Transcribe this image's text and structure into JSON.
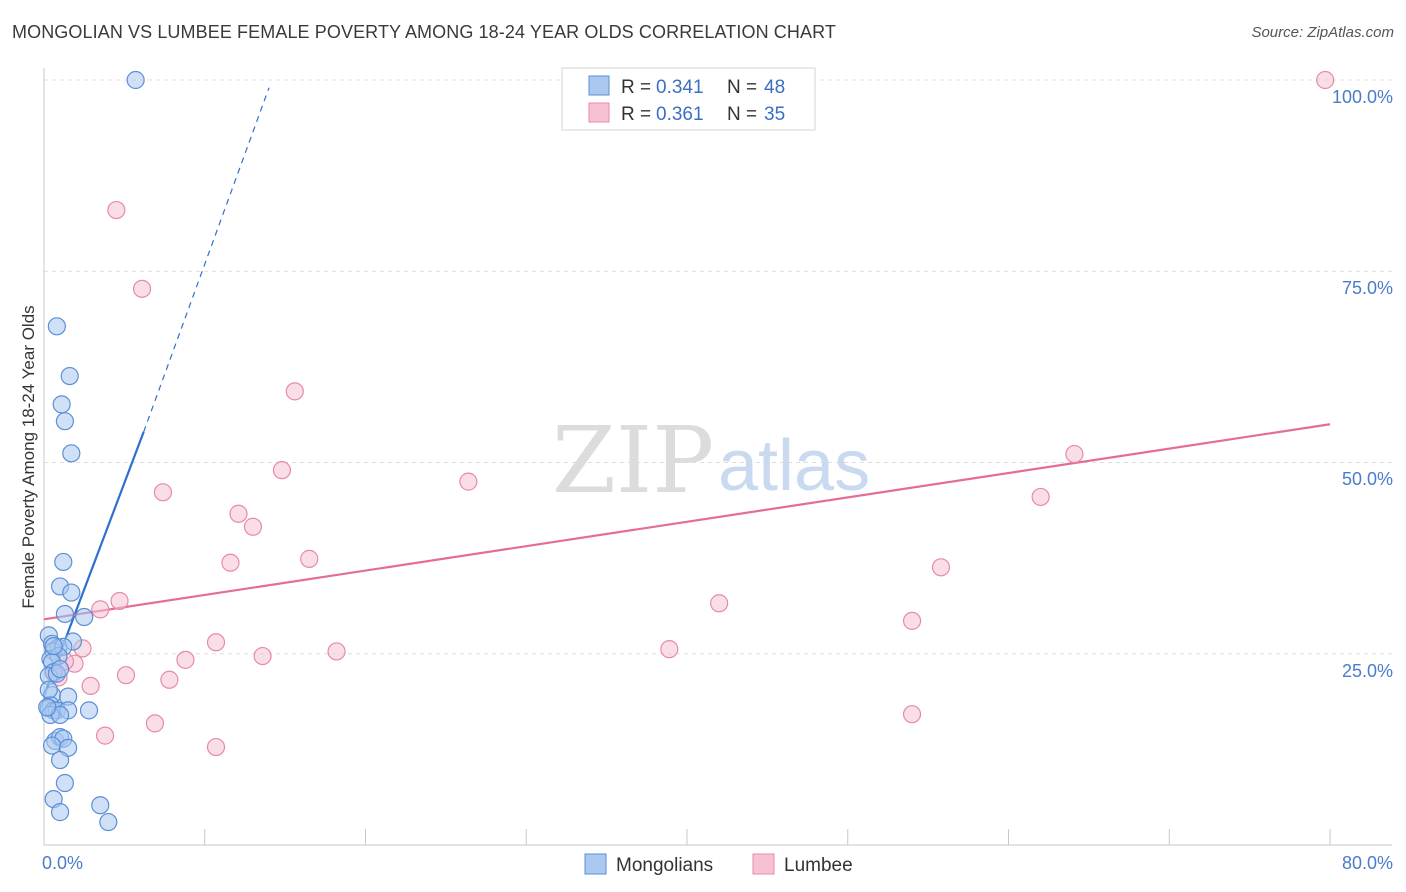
{
  "header": {
    "title": "MONGOLIAN VS LUMBEE FEMALE POVERTY AMONG 18-24 YEAR OLDS CORRELATION CHART",
    "source": "Source: ZipAtlas.com"
  },
  "watermark": {
    "zip": "ZIP",
    "atlas": "atlas"
  },
  "legend": {
    "r_label": "R =",
    "n_label": "N =",
    "rows": [
      {
        "r": "0.341",
        "n": "48"
      },
      {
        "r": "0.361",
        "n": "35"
      }
    ]
  },
  "colors": {
    "mongolian_fill": "#aac8f0",
    "mongolian_stroke": "#5b8fd6",
    "mongolian_line": "#2f6fd0",
    "lumbee_fill": "#f6c2d3",
    "lumbee_stroke": "#e889aa",
    "lumbee_line": "#e36d96",
    "grid": "#dddddd",
    "tick_text": "#4a7cc9"
  },
  "chart_data": {
    "type": "scatter",
    "title": "MONGOLIAN VS LUMBEE FEMALE POVERTY AMONG 18-24 YEAR OLDS CORRELATION CHART",
    "xlabel": "",
    "ylabel": "Female Poverty Among 18-24 Year Olds",
    "xlim": [
      0,
      80
    ],
    "ylim": [
      0,
      100
    ],
    "x_tick_labels": [
      "0.0%",
      "80.0%"
    ],
    "y_tick_labels": [
      "25.0%",
      "50.0%",
      "75.0%",
      "100.0%"
    ],
    "y_ticks": [
      25,
      50,
      75,
      100
    ],
    "series": [
      {
        "name": "Mongolians",
        "r": 0.341,
        "n": 48,
        "points": [
          [
            5.7,
            100.0
          ],
          [
            0.8,
            67.8
          ],
          [
            1.6,
            61.3
          ],
          [
            1.1,
            57.6
          ],
          [
            1.3,
            55.4
          ],
          [
            1.7,
            51.2
          ],
          [
            1.2,
            37.0
          ],
          [
            1.0,
            33.8
          ],
          [
            1.7,
            33.0
          ],
          [
            1.3,
            30.2
          ],
          [
            2.5,
            29.8
          ],
          [
            0.3,
            27.4
          ],
          [
            1.8,
            26.6
          ],
          [
            0.5,
            26.3
          ],
          [
            0.9,
            25.8
          ],
          [
            0.6,
            25.3
          ],
          [
            1.2,
            25.9
          ],
          [
            0.4,
            24.3
          ],
          [
            0.9,
            24.7
          ],
          [
            0.5,
            23.9
          ],
          [
            0.6,
            22.6
          ],
          [
            0.3,
            22.1
          ],
          [
            0.8,
            22.4
          ],
          [
            0.5,
            19.6
          ],
          [
            1.5,
            19.4
          ],
          [
            0.4,
            18.3
          ],
          [
            0.3,
            17.9
          ],
          [
            0.6,
            17.6
          ],
          [
            0.8,
            17.6
          ],
          [
            1.5,
            17.6
          ],
          [
            2.8,
            17.6
          ],
          [
            0.4,
            17.0
          ],
          [
            1.0,
            17.0
          ],
          [
            0.7,
            13.6
          ],
          [
            1.0,
            14.1
          ],
          [
            1.2,
            13.9
          ],
          [
            0.5,
            13.0
          ],
          [
            1.5,
            12.7
          ],
          [
            1.0,
            11.1
          ],
          [
            1.3,
            8.1
          ],
          [
            0.6,
            6.0
          ],
          [
            1.0,
            4.3
          ],
          [
            3.5,
            5.2
          ],
          [
            4.0,
            3.0
          ],
          [
            0.2,
            18.0
          ],
          [
            0.3,
            20.3
          ],
          [
            0.6,
            26.0
          ],
          [
            1.0,
            23.0
          ]
        ],
        "trendline": {
          "x": [
            0.0,
            6.2
          ],
          "y": [
            19.5,
            54.0
          ],
          "dashed_extension": {
            "x": [
              6.2,
              14.0
            ],
            "y": [
              54.0,
              99.0
            ]
          }
        }
      },
      {
        "name": "Lumbee",
        "r": 0.361,
        "n": 35,
        "points": [
          [
            79.7,
            100.0
          ],
          [
            4.5,
            83.0
          ],
          [
            6.1,
            72.7
          ],
          [
            15.6,
            59.3
          ],
          [
            64.1,
            51.1
          ],
          [
            14.8,
            49.0
          ],
          [
            26.4,
            47.5
          ],
          [
            7.4,
            46.1
          ],
          [
            62.0,
            45.5
          ],
          [
            12.1,
            43.3
          ],
          [
            13.0,
            41.6
          ],
          [
            16.5,
            37.4
          ],
          [
            11.6,
            36.9
          ],
          [
            55.8,
            36.3
          ],
          [
            4.7,
            31.9
          ],
          [
            42.0,
            31.6
          ],
          [
            3.5,
            30.8
          ],
          [
            54.0,
            29.3
          ],
          [
            10.7,
            26.5
          ],
          [
            2.4,
            25.7
          ],
          [
            18.2,
            25.3
          ],
          [
            38.9,
            25.6
          ],
          [
            13.6,
            24.7
          ],
          [
            8.8,
            24.2
          ],
          [
            1.9,
            23.7
          ],
          [
            5.1,
            22.2
          ],
          [
            7.8,
            21.6
          ],
          [
            2.9,
            20.8
          ],
          [
            0.9,
            21.9
          ],
          [
            6.9,
            15.9
          ],
          [
            3.8,
            14.3
          ],
          [
            10.7,
            12.8
          ],
          [
            54.0,
            17.1
          ],
          [
            0.6,
            22.5
          ],
          [
            1.3,
            24.0
          ]
        ],
        "trendline": {
          "x": [
            0.0,
            80.0
          ],
          "y": [
            29.5,
            55.0
          ]
        }
      }
    ]
  },
  "bottom_legend": {
    "items": [
      "Mongolians",
      "Lumbee"
    ]
  }
}
